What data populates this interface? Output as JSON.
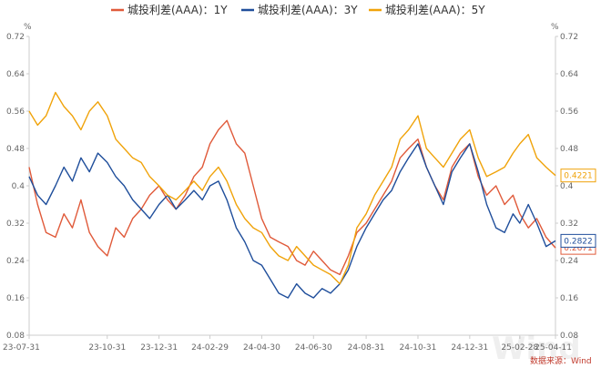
{
  "chart_data": {
    "type": "line",
    "unit_left": "%",
    "unit_right": "%",
    "ylim": [
      0.08,
      0.72
    ],
    "yticks": [
      0.08,
      0.16,
      0.24,
      0.32,
      0.4,
      0.48,
      0.56,
      0.64,
      0.72
    ],
    "ytick_labels": [
      "0.08",
      "0.16",
      "0.24",
      "0.32",
      "0.4",
      "0.48",
      "0.56",
      "0.64",
      "0.72"
    ],
    "xlim": [
      "2023-07-31",
      "2025-04-11"
    ],
    "xticks": [
      {
        "date": "2023-07-31",
        "label": "23-07-31"
      },
      {
        "date": "2023-10-31",
        "label": "23-10-31"
      },
      {
        "date": "2023-12-31",
        "label": "23-12-31"
      },
      {
        "date": "2024-02-29",
        "label": "24-02-29"
      },
      {
        "date": "2024-04-30",
        "label": "24-04-30"
      },
      {
        "date": "2024-06-30",
        "label": "24-06-30"
      },
      {
        "date": "2024-08-31",
        "label": "24-08-31"
      },
      {
        "date": "2024-10-31",
        "label": "24-10-31"
      },
      {
        "date": "2024-12-31",
        "label": "24-12-31"
      },
      {
        "date": "2025-02-28",
        "label": "25-02-28"
      },
      {
        "date": "2025-04-11",
        "label": "25-04-11"
      }
    ],
    "legend_position": "top-center",
    "grid": false,
    "source": "数据来源：Wind",
    "watermark": "Wind",
    "series": [
      {
        "name": "城投利差(AAA)：1Y",
        "color": "#e05a3a",
        "end_label": "0.2671",
        "x": [
          "2023-07-31",
          "2023-08-10",
          "2023-08-20",
          "2023-08-31",
          "2023-09-10",
          "2023-09-20",
          "2023-09-30",
          "2023-10-10",
          "2023-10-20",
          "2023-10-31",
          "2023-11-10",
          "2023-11-20",
          "2023-11-30",
          "2023-12-10",
          "2023-12-20",
          "2023-12-31",
          "2024-01-10",
          "2024-01-20",
          "2024-01-31",
          "2024-02-10",
          "2024-02-20",
          "2024-02-29",
          "2024-03-10",
          "2024-03-20",
          "2024-03-31",
          "2024-04-10",
          "2024-04-20",
          "2024-04-30",
          "2024-05-10",
          "2024-05-20",
          "2024-05-31",
          "2024-06-10",
          "2024-06-20",
          "2024-06-30",
          "2024-07-10",
          "2024-07-20",
          "2024-07-31",
          "2024-08-10",
          "2024-08-20",
          "2024-08-31",
          "2024-09-10",
          "2024-09-20",
          "2024-09-30",
          "2024-10-10",
          "2024-10-20",
          "2024-10-31",
          "2024-11-10",
          "2024-11-20",
          "2024-11-30",
          "2024-12-10",
          "2024-12-20",
          "2024-12-31",
          "2025-01-10",
          "2025-01-20",
          "2025-01-31",
          "2025-02-10",
          "2025-02-20",
          "2025-02-28",
          "2025-03-10",
          "2025-03-20",
          "2025-03-31",
          "2025-04-11"
        ],
        "y": [
          0.44,
          0.36,
          0.3,
          0.29,
          0.34,
          0.31,
          0.37,
          0.3,
          0.27,
          0.25,
          0.31,
          0.29,
          0.33,
          0.35,
          0.38,
          0.4,
          0.37,
          0.35,
          0.38,
          0.42,
          0.44,
          0.49,
          0.52,
          0.54,
          0.49,
          0.47,
          0.4,
          0.33,
          0.29,
          0.28,
          0.27,
          0.24,
          0.23,
          0.26,
          0.24,
          0.22,
          0.21,
          0.25,
          0.3,
          0.32,
          0.35,
          0.38,
          0.41,
          0.46,
          0.48,
          0.5,
          0.44,
          0.4,
          0.37,
          0.44,
          0.47,
          0.49,
          0.42,
          0.38,
          0.4,
          0.36,
          0.38,
          0.34,
          0.31,
          0.33,
          0.29,
          0.2671
        ]
      },
      {
        "name": "城投利差(AAA)：3Y",
        "color": "#1f4e9b",
        "end_label": "0.2822",
        "x": [
          "2023-07-31",
          "2023-08-10",
          "2023-08-20",
          "2023-08-31",
          "2023-09-10",
          "2023-09-20",
          "2023-09-30",
          "2023-10-10",
          "2023-10-20",
          "2023-10-31",
          "2023-11-10",
          "2023-11-20",
          "2023-11-30",
          "2023-12-10",
          "2023-12-20",
          "2023-12-31",
          "2024-01-10",
          "2024-01-20",
          "2024-01-31",
          "2024-02-10",
          "2024-02-20",
          "2024-02-29",
          "2024-03-10",
          "2024-03-20",
          "2024-03-31",
          "2024-04-10",
          "2024-04-20",
          "2024-04-30",
          "2024-05-10",
          "2024-05-20",
          "2024-05-31",
          "2024-06-10",
          "2024-06-20",
          "2024-06-30",
          "2024-07-10",
          "2024-07-20",
          "2024-07-31",
          "2024-08-10",
          "2024-08-20",
          "2024-08-31",
          "2024-09-10",
          "2024-09-20",
          "2024-09-30",
          "2024-10-10",
          "2024-10-20",
          "2024-10-31",
          "2024-11-10",
          "2024-11-20",
          "2024-11-30",
          "2024-12-10",
          "2024-12-20",
          "2024-12-31",
          "2025-01-10",
          "2025-01-20",
          "2025-01-31",
          "2025-02-10",
          "2025-02-20",
          "2025-02-28",
          "2025-03-10",
          "2025-03-20",
          "2025-03-31",
          "2025-04-11"
        ],
        "y": [
          0.42,
          0.38,
          0.36,
          0.4,
          0.44,
          0.41,
          0.46,
          0.43,
          0.47,
          0.45,
          0.42,
          0.4,
          0.37,
          0.35,
          0.33,
          0.36,
          0.38,
          0.35,
          0.37,
          0.39,
          0.37,
          0.4,
          0.41,
          0.37,
          0.31,
          0.28,
          0.24,
          0.23,
          0.2,
          0.17,
          0.16,
          0.19,
          0.17,
          0.16,
          0.18,
          0.17,
          0.19,
          0.22,
          0.27,
          0.31,
          0.34,
          0.37,
          0.39,
          0.43,
          0.46,
          0.49,
          0.44,
          0.4,
          0.36,
          0.43,
          0.46,
          0.49,
          0.43,
          0.36,
          0.31,
          0.3,
          0.34,
          0.32,
          0.36,
          0.32,
          0.27,
          0.2822
        ]
      },
      {
        "name": "城投利差(AAA)：5Y",
        "color": "#f0a30a",
        "end_label": "0.4221",
        "x": [
          "2023-07-31",
          "2023-08-10",
          "2023-08-20",
          "2023-08-31",
          "2023-09-10",
          "2023-09-20",
          "2023-09-30",
          "2023-10-10",
          "2023-10-20",
          "2023-10-31",
          "2023-11-10",
          "2023-11-20",
          "2023-11-30",
          "2023-12-10",
          "2023-12-20",
          "2023-12-31",
          "2024-01-10",
          "2024-01-20",
          "2024-01-31",
          "2024-02-10",
          "2024-02-20",
          "2024-02-29",
          "2024-03-10",
          "2024-03-20",
          "2024-03-31",
          "2024-04-10",
          "2024-04-20",
          "2024-04-30",
          "2024-05-10",
          "2024-05-20",
          "2024-05-31",
          "2024-06-10",
          "2024-06-20",
          "2024-06-30",
          "2024-07-10",
          "2024-07-20",
          "2024-07-31",
          "2024-08-10",
          "2024-08-20",
          "2024-08-31",
          "2024-09-10",
          "2024-09-20",
          "2024-09-30",
          "2024-10-10",
          "2024-10-20",
          "2024-10-31",
          "2024-11-10",
          "2024-11-20",
          "2024-11-30",
          "2024-12-10",
          "2024-12-20",
          "2024-12-31",
          "2025-01-10",
          "2025-01-20",
          "2025-01-31",
          "2025-02-10",
          "2025-02-20",
          "2025-02-28",
          "2025-03-10",
          "2025-03-20",
          "2025-03-31",
          "2025-04-11"
        ],
        "y": [
          0.56,
          0.53,
          0.55,
          0.6,
          0.57,
          0.55,
          0.52,
          0.56,
          0.58,
          0.55,
          0.5,
          0.48,
          0.46,
          0.45,
          0.42,
          0.4,
          0.38,
          0.37,
          0.39,
          0.41,
          0.39,
          0.42,
          0.44,
          0.41,
          0.36,
          0.33,
          0.31,
          0.3,
          0.27,
          0.25,
          0.24,
          0.27,
          0.25,
          0.23,
          0.22,
          0.21,
          0.19,
          0.23,
          0.31,
          0.34,
          0.38,
          0.41,
          0.44,
          0.5,
          0.52,
          0.55,
          0.48,
          0.46,
          0.44,
          0.47,
          0.5,
          0.52,
          0.46,
          0.42,
          0.43,
          0.44,
          0.47,
          0.49,
          0.51,
          0.46,
          0.44,
          0.4221
        ]
      }
    ]
  }
}
